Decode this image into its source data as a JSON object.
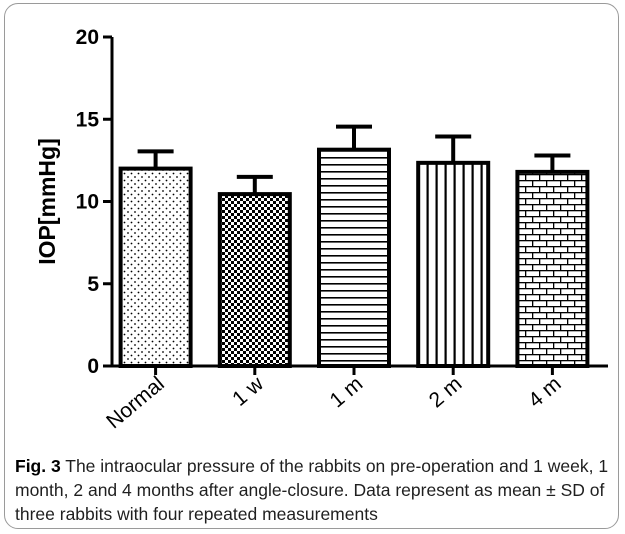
{
  "figure": {
    "caption_label": "Fig. 3",
    "caption_text": "The intraocular pressure of the rabbits on pre-operation and 1 week, 1 month, 2 and 4 months after angle-closure. Data represent as mean ± SD of three rabbits with four repeated measurements"
  },
  "chart_data": {
    "type": "bar",
    "title": "",
    "xlabel": "",
    "ylabel": "IOP[mmHg]",
    "ylim": [
      0,
      20
    ],
    "yticks": [
      0,
      5,
      10,
      15,
      20
    ],
    "categories": [
      "Normal",
      "1 w",
      "1 m",
      "2 m",
      "4 m"
    ],
    "values": [
      12.0,
      10.45,
      13.15,
      12.35,
      11.8
    ],
    "error": [
      1.05,
      1.05,
      1.4,
      1.6,
      1.0
    ],
    "error_type": "SD",
    "fill_patterns": [
      "dots",
      "checker",
      "horizontal-lines",
      "vertical-lines",
      "bricks"
    ],
    "grid": false,
    "bar_color": "#000000"
  }
}
